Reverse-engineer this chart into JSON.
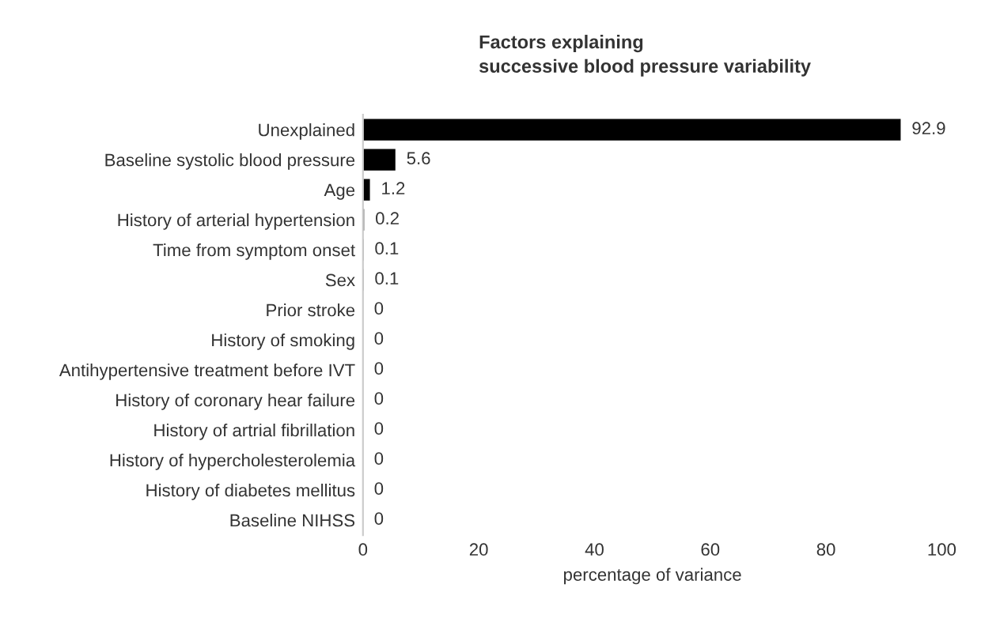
{
  "chart_data": {
    "type": "bar",
    "orientation": "horizontal",
    "title": "Factors explaining\nsuccessive blood pressure variability",
    "xlabel": "percentage of variance",
    "categories": [
      "Unexplained",
      "Baseline systolic blood pressure",
      "Age",
      "History of arterial hypertension",
      "Time from symptom onset",
      "Sex",
      "Prior stroke",
      "History of smoking",
      "Antihypertensive treatment before IVT",
      "History of coronary hear failure",
      "History of artrial fibrillation",
      "History of hypercholesterolemia",
      "History of diabetes mellitus",
      "Baseline NIHSS"
    ],
    "values": [
      92.9,
      5.6,
      1.2,
      0.2,
      0.1,
      0.1,
      0,
      0,
      0,
      0,
      0,
      0,
      0,
      0
    ],
    "color": "#000000",
    "data_labels": true,
    "grid": false,
    "legend": false,
    "xlim": [
      0,
      100
    ],
    "xticks": [
      0,
      20,
      40,
      60,
      80,
      100
    ]
  }
}
